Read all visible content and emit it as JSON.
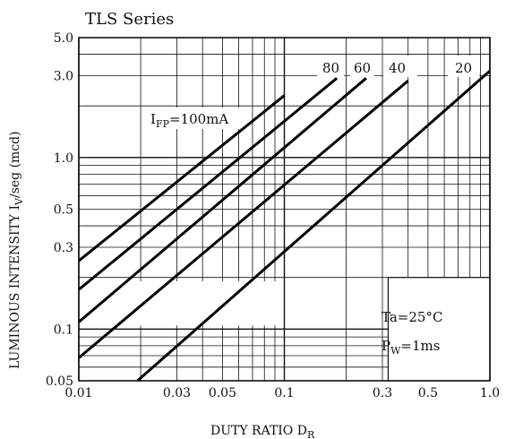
{
  "chart_data": {
    "type": "line",
    "title": "TLS Series",
    "xlabel": {
      "main": "DUTY RATIO  D",
      "sub": "R"
    },
    "ylabel": {
      "main": "LUMINOUS INTENSITY  I",
      "sub": "V",
      "suffix": "/seg   (mcd)"
    },
    "x_scale": "log",
    "y_scale": "log",
    "xlim": [
      0.01,
      1.0
    ],
    "ylim": [
      0.05,
      5.0
    ],
    "x_ticks": [
      0.01,
      0.03,
      0.05,
      0.1,
      0.3,
      0.5,
      1.0
    ],
    "x_tick_labels": [
      "0.01",
      "0.03",
      "0.05",
      "0.1",
      "0.3",
      "0.5",
      "1.0"
    ],
    "y_ticks": [
      0.05,
      0.1,
      0.3,
      0.5,
      1.0,
      3.0,
      5.0
    ],
    "y_tick_labels": [
      "0.05",
      "0.1",
      "0.3",
      "0.5",
      "1.0",
      "3.0",
      "5.0"
    ],
    "grid": true,
    "curve_family_label": {
      "main": "I",
      "sub": "FP",
      "rest": "=100mA"
    },
    "series": [
      {
        "name": "100mA",
        "label": "",
        "x": [
          0.01,
          0.1
        ],
        "y": [
          0.25,
          2.3
        ]
      },
      {
        "name": "80",
        "label": "80",
        "x": [
          0.01,
          0.18
        ],
        "y": [
          0.17,
          2.9
        ]
      },
      {
        "name": "60",
        "label": "60",
        "x": [
          0.01,
          0.25
        ],
        "y": [
          0.11,
          2.9
        ]
      },
      {
        "name": "40",
        "label": "40",
        "x": [
          0.01,
          0.4
        ],
        "y": [
          0.068,
          2.8
        ]
      },
      {
        "name": "20",
        "label": "20",
        "x": [
          0.0193,
          1.0
        ],
        "y": [
          0.05,
          3.2
        ]
      }
    ],
    "annotations": {
      "ta": {
        "main": "Ta=25°C"
      },
      "pw": {
        "main": "P",
        "sub": "W",
        "rest": "=1ms"
      }
    }
  }
}
